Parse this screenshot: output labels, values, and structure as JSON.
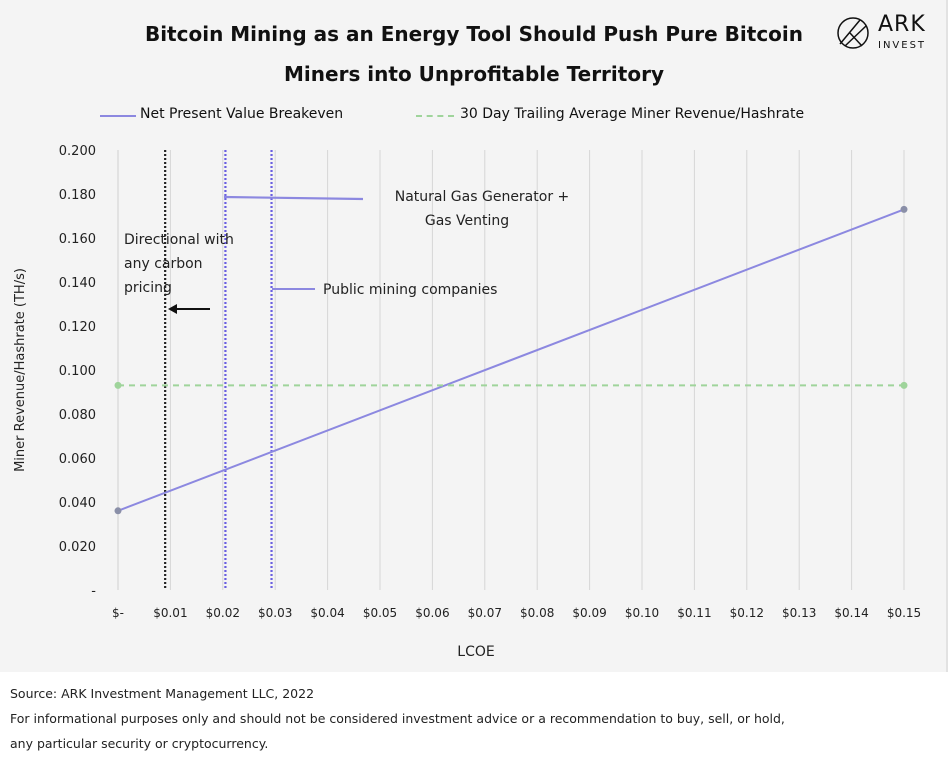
{
  "header": {
    "title_line1": "Bitcoin Mining as an Energy Tool Should Push Pure Bitcoin",
    "title_line2": "Miners into Unprofitable Territory",
    "logo_top": "ARK",
    "logo_bottom": "INVEST"
  },
  "legend": [
    {
      "label": "Net Present Value Breakeven",
      "color": "#8c88e0",
      "style": "solid"
    },
    {
      "label": "30 Day Trailing Average Miner Revenue/Hashrate",
      "color": "#9fd49b",
      "style": "dashed"
    }
  ],
  "annotations": {
    "carbon_line1": "Directional with",
    "carbon_line2": "any carbon",
    "carbon_line3": "pricing",
    "gas_line1": "Natural Gas Generator +",
    "gas_line2": "Gas Venting",
    "public": "Public mining companies"
  },
  "chart_data": {
    "type": "line",
    "title": "Bitcoin Mining as an Energy Tool Should Push Pure Bitcoin Miners into Unprofitable Territory",
    "xlabel": "LCOE",
    "ylabel": "Miner Revenue/Hashrate (TH/s)",
    "xlim": [
      0,
      0.15
    ],
    "ylim": [
      0,
      0.2
    ],
    "x_ticks": [
      0,
      0.01,
      0.02,
      0.03,
      0.04,
      0.05,
      0.06,
      0.07,
      0.08,
      0.09,
      0.1,
      0.11,
      0.12,
      0.13,
      0.14,
      0.15
    ],
    "x_tick_labels": [
      "$-",
      "$0.01",
      "$0.02",
      "$0.03",
      "$0.04",
      "$0.05",
      "$0.06",
      "$0.07",
      "$0.08",
      "$0.09",
      "$0.10",
      "$0.11",
      "$0.12",
      "$0.13",
      "$0.14",
      "$0.15"
    ],
    "y_ticks": [
      0,
      0.02,
      0.04,
      0.06,
      0.08,
      0.1,
      0.12,
      0.14,
      0.16,
      0.18,
      0.2
    ],
    "y_tick_labels": [
      "-",
      "0.020",
      "0.040",
      "0.060",
      "0.080",
      "0.100",
      "0.120",
      "0.140",
      "0.160",
      "0.180",
      "0.200"
    ],
    "grid": "vertical",
    "legend_position": "top",
    "series": [
      {
        "name": "Net Present Value Breakeven",
        "x": [
          0,
          0.15
        ],
        "y": [
          0.036,
          0.173
        ],
        "color": "#8c88e0",
        "style": "solid"
      },
      {
        "name": "30 Day Trailing Average Miner Revenue/Hashrate",
        "x": [
          0,
          0.15
        ],
        "y": [
          0.093,
          0.093
        ],
        "color": "#9fd49b",
        "style": "dashed"
      }
    ],
    "vertical_lines": [
      {
        "x": 0.009,
        "color": "#222222",
        "style": "dotted"
      },
      {
        "x": 0.0205,
        "color": "#6a5fe0",
        "style": "dotted"
      },
      {
        "x": 0.0293,
        "color": "#6a5fe0",
        "style": "dotted"
      }
    ]
  },
  "footer": {
    "source": "Source: ARK Investment Management LLC, 2022",
    "disclaimer_line1": "For informational purposes only and should not be considered investment advice or a recommendation to buy, sell, or hold,",
    "disclaimer_line2": "any particular security or cryptocurrency."
  }
}
